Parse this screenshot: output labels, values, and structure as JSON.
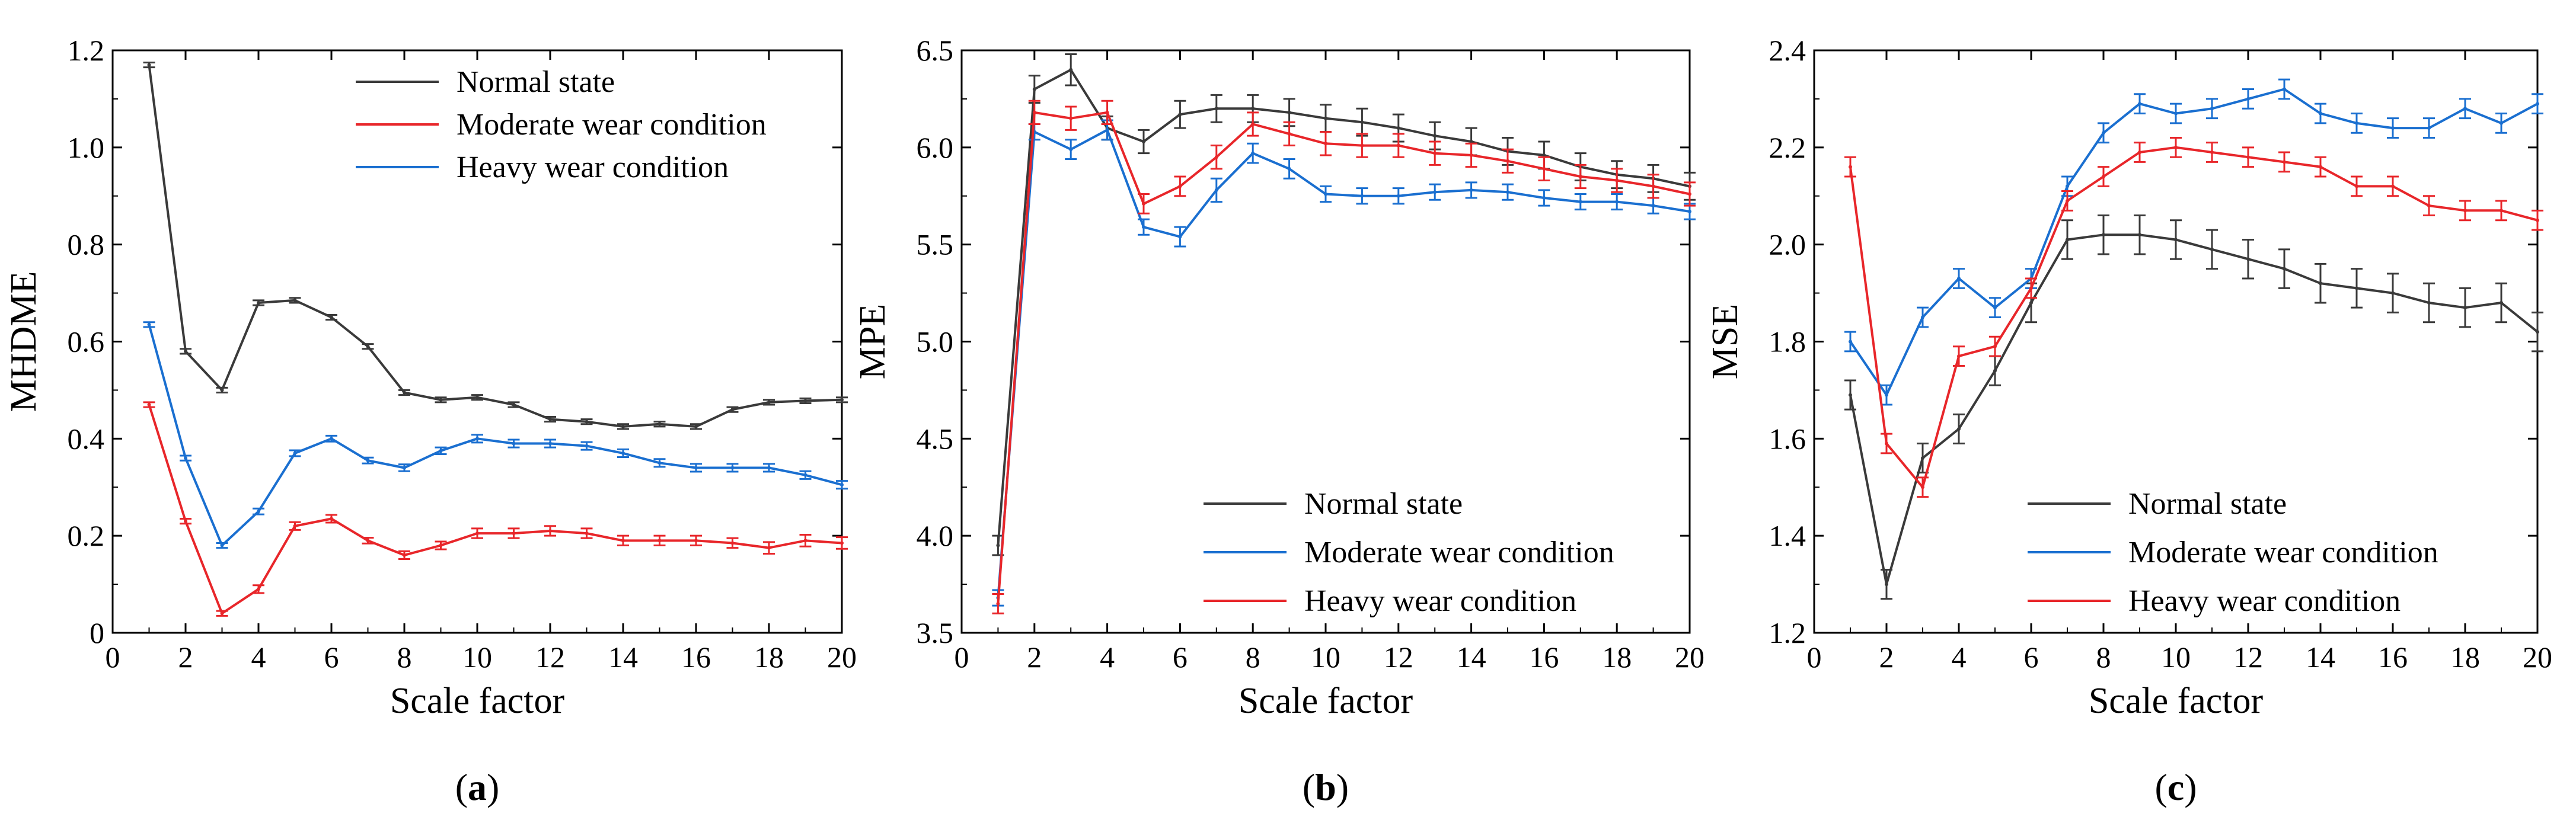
{
  "colors": {
    "normal": "#3a3a3a",
    "red": "#e8262a",
    "blue": "#1a6fd0"
  },
  "chart_data": [
    {
      "type": "line",
      "panel_label": "a",
      "title": "",
      "xlabel": "Scale factor",
      "ylabel": "MHDME",
      "xlim": [
        0,
        20
      ],
      "ylim": [
        0,
        1.2
      ],
      "xticks": [
        0,
        2,
        4,
        6,
        8,
        10,
        12,
        14,
        16,
        18,
        20
      ],
      "yticks": [
        0,
        0.2,
        0.4,
        0.6,
        0.8,
        1.0,
        1.2
      ],
      "ytick_labels": [
        "0",
        "0.2",
        "0.4",
        "0.6",
        "0.8",
        "1.0",
        "1.2"
      ],
      "legend_position": "top-right",
      "x": [
        1,
        2,
        3,
        4,
        5,
        6,
        7,
        8,
        9,
        10,
        11,
        12,
        13,
        14,
        15,
        16,
        17,
        18,
        19,
        20
      ],
      "series": [
        {
          "name": "Normal state",
          "color_key": "normal",
          "values": [
            1.17,
            0.58,
            0.5,
            0.68,
            0.685,
            0.65,
            0.59,
            0.495,
            0.48,
            0.485,
            0.47,
            0.44,
            0.435,
            0.425,
            0.43,
            0.425,
            0.46,
            0.475,
            0.478,
            0.48
          ],
          "errors": [
            0.005,
            0.005,
            0.005,
            0.005,
            0.005,
            0.005,
            0.005,
            0.005,
            0.005,
            0.005,
            0.005,
            0.005,
            0.005,
            0.005,
            0.005,
            0.005,
            0.005,
            0.005,
            0.005,
            0.005
          ]
        },
        {
          "name": "Moderate wear condition",
          "color_key": "red",
          "values": [
            0.47,
            0.23,
            0.04,
            0.09,
            0.22,
            0.235,
            0.19,
            0.16,
            0.18,
            0.205,
            0.205,
            0.21,
            0.205,
            0.19,
            0.19,
            0.19,
            0.185,
            0.175,
            0.19,
            0.185
          ],
          "errors": [
            0.005,
            0.005,
            0.005,
            0.008,
            0.008,
            0.008,
            0.006,
            0.008,
            0.008,
            0.01,
            0.01,
            0.01,
            0.01,
            0.01,
            0.01,
            0.01,
            0.01,
            0.012,
            0.012,
            0.012
          ]
        },
        {
          "name": "Heavy wear condition",
          "color_key": "blue",
          "values": [
            0.635,
            0.36,
            0.18,
            0.25,
            0.37,
            0.4,
            0.355,
            0.34,
            0.375,
            0.4,
            0.39,
            0.39,
            0.385,
            0.37,
            0.35,
            0.34,
            0.34,
            0.34,
            0.325,
            0.305
          ],
          "errors": [
            0.005,
            0.005,
            0.005,
            0.006,
            0.006,
            0.006,
            0.006,
            0.007,
            0.007,
            0.008,
            0.008,
            0.008,
            0.008,
            0.008,
            0.008,
            0.008,
            0.008,
            0.008,
            0.008,
            0.008
          ]
        }
      ]
    },
    {
      "type": "line",
      "panel_label": "b",
      "title": "",
      "xlabel": "Scale factor",
      "ylabel": "MPE",
      "xlim": [
        0,
        20
      ],
      "ylim": [
        3.5,
        6.5
      ],
      "xticks": [
        0,
        2,
        4,
        6,
        8,
        10,
        12,
        14,
        16,
        18,
        20
      ],
      "yticks": [
        3.5,
        4.0,
        4.5,
        5.0,
        5.5,
        6.0,
        6.5
      ],
      "ytick_labels": [
        "3.5",
        "4.0",
        "4.5",
        "5.0",
        "5.5",
        "6.0",
        "6.5"
      ],
      "legend_position": "bottom-right",
      "x": [
        1,
        2,
        3,
        4,
        5,
        6,
        7,
        8,
        9,
        10,
        11,
        12,
        13,
        14,
        15,
        16,
        17,
        18,
        19,
        20
      ],
      "series": [
        {
          "name": "Normal state",
          "color_key": "normal",
          "values": [
            3.95,
            6.3,
            6.4,
            6.1,
            6.03,
            6.17,
            6.2,
            6.2,
            6.18,
            6.15,
            6.13,
            6.1,
            6.06,
            6.03,
            5.98,
            5.96,
            5.9,
            5.86,
            5.84,
            5.8
          ],
          "errors": [
            0.05,
            0.07,
            0.08,
            0.06,
            0.06,
            0.07,
            0.07,
            0.07,
            0.07,
            0.07,
            0.07,
            0.07,
            0.07,
            0.07,
            0.07,
            0.07,
            0.07,
            0.07,
            0.07,
            0.07
          ]
        },
        {
          "name": "Moderate wear condition",
          "color_key": "blue",
          "values": [
            3.68,
            6.08,
            5.99,
            6.09,
            5.59,
            5.54,
            5.78,
            5.97,
            5.89,
            5.76,
            5.75,
            5.75,
            5.77,
            5.78,
            5.77,
            5.74,
            5.72,
            5.72,
            5.7,
            5.67
          ],
          "errors": [
            0.04,
            0.04,
            0.05,
            0.05,
            0.04,
            0.05,
            0.06,
            0.05,
            0.05,
            0.04,
            0.04,
            0.04,
            0.04,
            0.04,
            0.04,
            0.04,
            0.04,
            0.04,
            0.04,
            0.04
          ]
        },
        {
          "name": "Heavy wear condition",
          "color_key": "red",
          "values": [
            3.65,
            6.18,
            6.15,
            6.18,
            5.71,
            5.8,
            5.95,
            6.12,
            6.07,
            6.02,
            6.01,
            6.01,
            5.97,
            5.96,
            5.93,
            5.89,
            5.85,
            5.83,
            5.8,
            5.76
          ],
          "errors": [
            0.05,
            0.06,
            0.06,
            0.06,
            0.05,
            0.05,
            0.06,
            0.06,
            0.06,
            0.06,
            0.06,
            0.06,
            0.06,
            0.06,
            0.06,
            0.06,
            0.06,
            0.06,
            0.06,
            0.06
          ]
        }
      ]
    },
    {
      "type": "line",
      "panel_label": "c",
      "title": "",
      "xlabel": "Scale factor",
      "ylabel": "MSE",
      "xlim": [
        0,
        20
      ],
      "ylim": [
        1.2,
        2.4
      ],
      "xticks": [
        0,
        2,
        4,
        6,
        8,
        10,
        12,
        14,
        16,
        18,
        20
      ],
      "yticks": [
        1.2,
        1.4,
        1.6,
        1.8,
        2.0,
        2.2,
        2.4
      ],
      "ytick_labels": [
        "1.2",
        "1.4",
        "1.6",
        "1.8",
        "2.0",
        "2.2",
        "2.4"
      ],
      "legend_position": "bottom-right",
      "x": [
        1,
        2,
        3,
        4,
        5,
        6,
        7,
        8,
        9,
        10,
        11,
        12,
        13,
        14,
        15,
        16,
        17,
        18,
        19,
        20
      ],
      "series": [
        {
          "name": "Normal state",
          "color_key": "normal",
          "values": [
            1.69,
            1.3,
            1.56,
            1.62,
            1.74,
            1.88,
            2.01,
            2.02,
            2.02,
            2.01,
            1.99,
            1.97,
            1.95,
            1.92,
            1.91,
            1.9,
            1.88,
            1.87,
            1.88,
            1.82
          ],
          "errors": [
            0.03,
            0.03,
            0.03,
            0.03,
            0.03,
            0.04,
            0.04,
            0.04,
            0.04,
            0.04,
            0.04,
            0.04,
            0.04,
            0.04,
            0.04,
            0.04,
            0.04,
            0.04,
            0.04,
            0.04
          ]
        },
        {
          "name": "Moderate wear condition",
          "color_key": "blue",
          "values": [
            1.8,
            1.69,
            1.85,
            1.93,
            1.87,
            1.93,
            2.12,
            2.23,
            2.29,
            2.27,
            2.28,
            2.3,
            2.32,
            2.27,
            2.25,
            2.24,
            2.24,
            2.28,
            2.25,
            2.29
          ],
          "errors": [
            0.02,
            0.02,
            0.02,
            0.02,
            0.02,
            0.02,
            0.02,
            0.02,
            0.02,
            0.02,
            0.02,
            0.02,
            0.02,
            0.02,
            0.02,
            0.02,
            0.02,
            0.02,
            0.02,
            0.02
          ]
        },
        {
          "name": "Heavy wear condition",
          "color_key": "red",
          "values": [
            2.16,
            1.59,
            1.5,
            1.77,
            1.79,
            1.91,
            2.09,
            2.14,
            2.19,
            2.2,
            2.19,
            2.18,
            2.17,
            2.16,
            2.12,
            2.12,
            2.08,
            2.07,
            2.07,
            2.05
          ],
          "errors": [
            0.02,
            0.02,
            0.02,
            0.02,
            0.02,
            0.02,
            0.02,
            0.02,
            0.02,
            0.02,
            0.02,
            0.02,
            0.02,
            0.02,
            0.02,
            0.02,
            0.02,
            0.02,
            0.02,
            0.02
          ]
        }
      ]
    }
  ]
}
